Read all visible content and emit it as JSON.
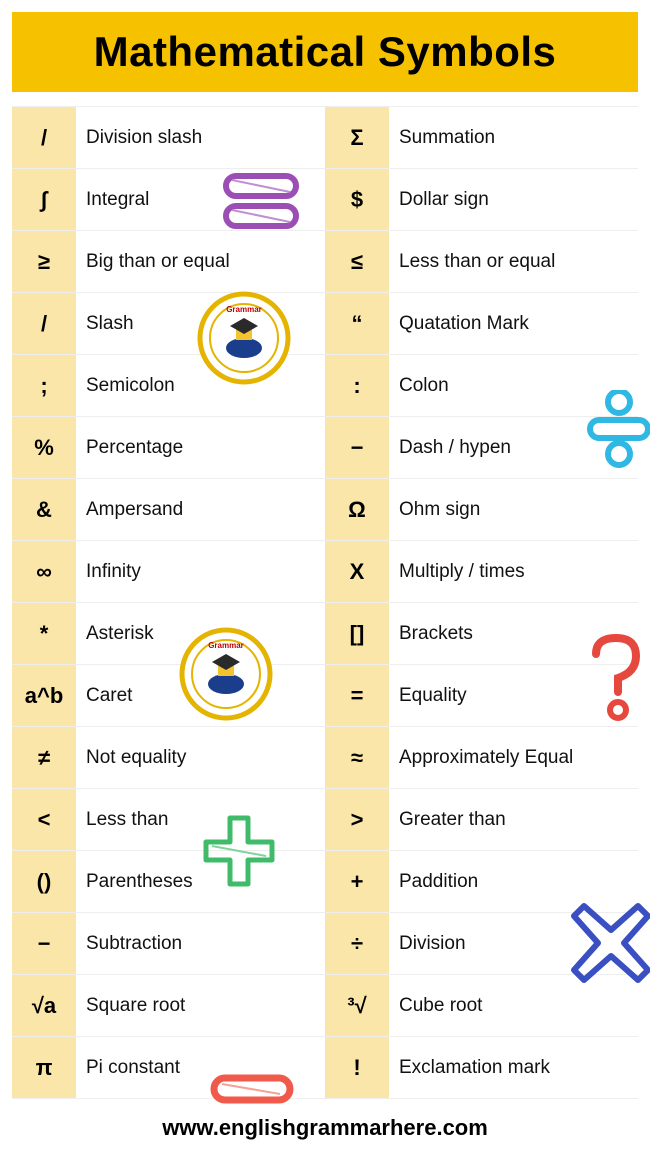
{
  "title": "Mathematical Symbols",
  "footer": "www.englishgrammarhere.com",
  "colors": {
    "header_bg": "#f6c200",
    "symbol_bg": "#f9e6a8",
    "text": "#000000",
    "border": "#eeeeee",
    "deco_purple": "#9b4fb5",
    "deco_cyan": "#2fb8e3",
    "deco_green": "#3fbb6a",
    "deco_red": "#e7483e",
    "deco_blue": "#3a4fc2",
    "deco_coral": "#f05a4a",
    "logo_ring": "#e4b400"
  },
  "left": [
    {
      "symbol": "/",
      "label": "Division slash"
    },
    {
      "symbol": "∫",
      "label": "Integral"
    },
    {
      "symbol": "≥",
      "label": "Big than or equal"
    },
    {
      "symbol": "/",
      "label": "Slash"
    },
    {
      "symbol": ";",
      "label": "Semicolon"
    },
    {
      "symbol": "%",
      "label": "Percentage"
    },
    {
      "symbol": "&",
      "label": "Ampersand"
    },
    {
      "symbol": "∞",
      "label": "Infinity"
    },
    {
      "symbol": "*",
      "label": "Asterisk"
    },
    {
      "symbol": "a^b",
      "label": "Caret"
    },
    {
      "symbol": "≠",
      "label": "Not equality"
    },
    {
      "symbol": "<",
      "label": "Less than"
    },
    {
      "symbol": "()",
      "label": "Parentheses"
    },
    {
      "symbol": "−",
      "label": "Subtraction"
    },
    {
      "symbol": "√a",
      "label": "Square root"
    },
    {
      "symbol": "π",
      "label": "Pi constant"
    }
  ],
  "right": [
    {
      "symbol": "Σ",
      "label": "Summation"
    },
    {
      "symbol": "$",
      "label": "Dollar sign"
    },
    {
      "symbol": "≤",
      "label": "Less than or equal"
    },
    {
      "symbol": "“",
      "label": "Quatation Mark"
    },
    {
      "symbol": ":",
      "label": "Colon"
    },
    {
      "symbol": "−",
      "label": "Dash / hypen"
    },
    {
      "symbol": "Ω",
      "label": "Ohm sign"
    },
    {
      "symbol": "X",
      "label": "Multiply / times"
    },
    {
      "symbol": "[]",
      "label": "Brackets"
    },
    {
      "symbol": "=",
      "label": "Equality"
    },
    {
      "symbol": "≈",
      "label": "Approximately Equal"
    },
    {
      "symbol": ">",
      "label": "Greater than"
    },
    {
      "symbol": "+",
      "label": "Paddition"
    },
    {
      "symbol": "÷",
      "label": "Division"
    },
    {
      "symbol": "³√",
      "label": "Cube root"
    },
    {
      "symbol": "!",
      "label": "Exclamation mark"
    }
  ]
}
